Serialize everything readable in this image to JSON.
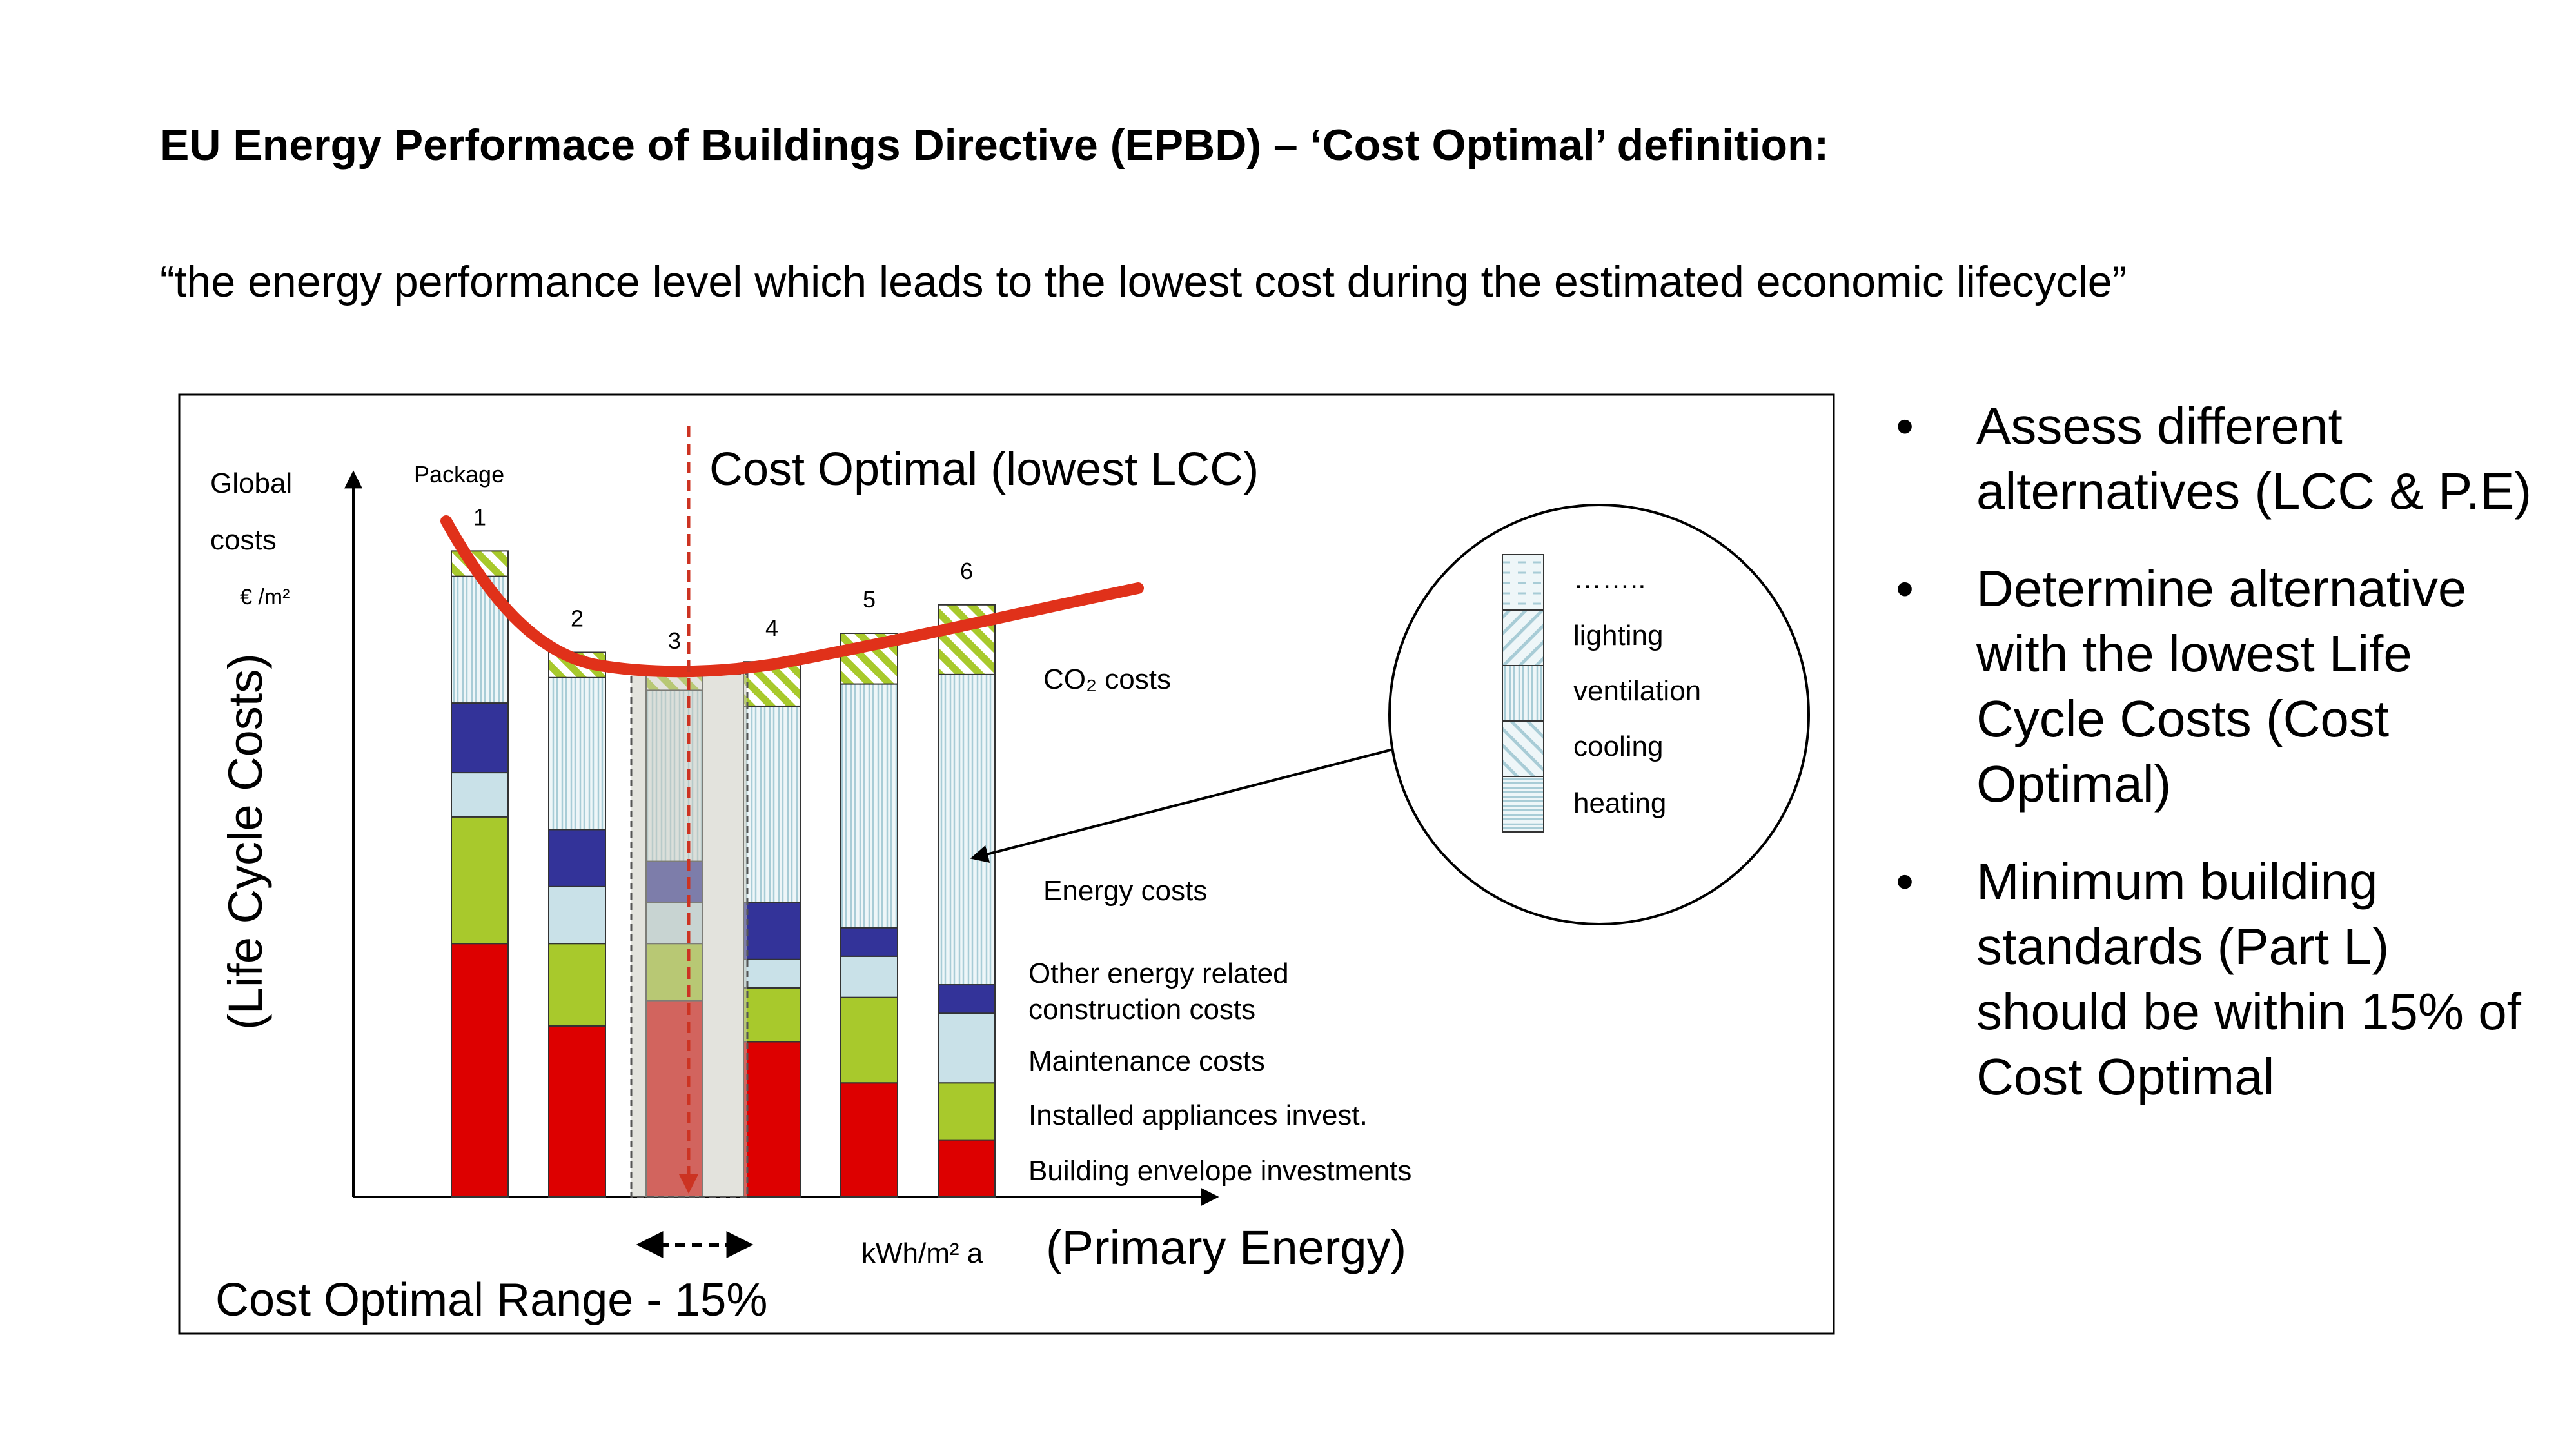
{
  "slide": {
    "title": "EU Energy Performace of Buildings Directive (EPBD) – ‘Cost Optimal’ definition:",
    "quote": "“the energy performance level which leads to the lowest cost during the estimated economic lifecycle”",
    "bullets": [
      "Assess different alternatives (LCC & P.E)",
      "Determine alternative with the lowest Life Cycle Costs (Cost Optimal)",
      "Minimum building standards (Part L) should be within 15% of Cost Optimal"
    ]
  },
  "diagram": {
    "y_label_top": [
      "Global",
      "costs",
      "€ /m²"
    ],
    "y_axis_label": "(Life Cycle Costs)",
    "package_label": "Package",
    "cost_optimal_label": "Cost Optimal (lowest LCC)",
    "x_unit_label": "kWh/m² a",
    "x_axis_label": "(Primary Energy)",
    "range_label": "Cost Optimal Range - 15%",
    "legend_labels": {
      "co2": "CO₂ costs",
      "energy": "Energy costs",
      "other_1": "Other energy related",
      "other_2": "construction costs",
      "maintenance": "Maintenance costs",
      "appliances": "Installed appliances invest.",
      "envelope": "Building envelope investments"
    },
    "circle_items": [
      "……..",
      "lighting",
      "ventilation",
      "cooling",
      "heating"
    ],
    "colors": {
      "envelope": "#dd0000",
      "appliances": "#a8c92c",
      "maintenance": "#c9e1e8",
      "other": "#333399",
      "energy": "#e9f4f6",
      "co2": "#a8c92c",
      "curve": "#e0311a",
      "optimal_line": "#cc3322"
    },
    "packages": [
      {
        "label": "1",
        "envelope": 40,
        "appliances": 20,
        "maintenance": 7,
        "other": 11,
        "energy": 20,
        "co2": 4
      },
      {
        "label": "2",
        "envelope": 27,
        "appliances": 13,
        "maintenance": 9,
        "other": 9,
        "energy": 24,
        "co2": 4
      },
      {
        "label": "3",
        "envelope": 31,
        "appliances": 9,
        "maintenance": 6.5,
        "other": 6.5,
        "energy": 27,
        "co2": 2.5
      },
      {
        "label": "4",
        "envelope": 24.5,
        "appliances": 8.5,
        "maintenance": 4.5,
        "other": 9,
        "energy": 31,
        "co2": 7
      },
      {
        "label": "5",
        "envelope": 18,
        "appliances": 13.5,
        "maintenance": 6.5,
        "other": 4.5,
        "energy": 38.5,
        "co2": 8
      },
      {
        "label": "6",
        "envelope": 9,
        "appliances": 9,
        "maintenance": 11,
        "other": 4.5,
        "energy": 49,
        "co2": 11
      }
    ]
  }
}
